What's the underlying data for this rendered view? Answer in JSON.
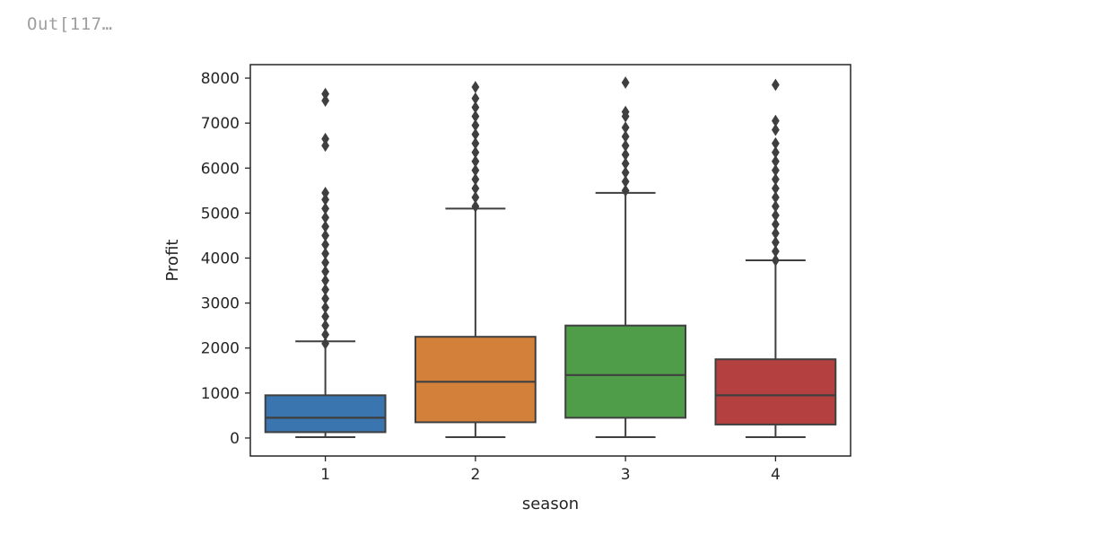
{
  "cell": {
    "prompt": "Out[117…"
  },
  "chart_data": {
    "type": "box",
    "xlabel": "season",
    "ylabel": "Profit",
    "ylim": [
      -400,
      8300
    ],
    "yticks": [
      0,
      1000,
      2000,
      3000,
      4000,
      5000,
      6000,
      7000,
      8000
    ],
    "grid": false,
    "categories": [
      "1",
      "2",
      "3",
      "4"
    ],
    "boxes": [
      {
        "category": "1",
        "color": "#3a75af",
        "q1": 130,
        "median": 450,
        "q3": 950,
        "whisker_low": 20,
        "whisker_high": 2150,
        "outliers": [
          2100,
          2300,
          2500,
          2700,
          2900,
          3100,
          3300,
          3500,
          3700,
          3900,
          4100,
          4300,
          4500,
          4700,
          4900,
          5100,
          5300,
          5450,
          6500,
          6650,
          7500,
          7650
        ]
      },
      {
        "category": "2",
        "color": "#d3813a",
        "q1": 350,
        "median": 1250,
        "q3": 2250,
        "whisker_low": 20,
        "whisker_high": 5100,
        "outliers": [
          5150,
          5350,
          5550,
          5750,
          5950,
          6150,
          6350,
          6550,
          6750,
          6950,
          7150,
          7350,
          7550,
          7800
        ]
      },
      {
        "category": "3",
        "color": "#4f9d48",
        "q1": 450,
        "median": 1400,
        "q3": 2500,
        "whisker_low": 20,
        "whisker_high": 5450,
        "outliers": [
          5500,
          5700,
          5900,
          6100,
          6300,
          6500,
          6700,
          6900,
          7150,
          7250,
          7900
        ]
      },
      {
        "category": "4",
        "color": "#b4413f",
        "q1": 300,
        "median": 950,
        "q3": 1750,
        "whisker_low": 20,
        "whisker_high": 3950,
        "outliers": [
          3950,
          4150,
          4350,
          4550,
          4750,
          4950,
          5150,
          5350,
          5550,
          5750,
          5950,
          6150,
          6350,
          6550,
          6850,
          7050,
          7850
        ]
      }
    ]
  }
}
